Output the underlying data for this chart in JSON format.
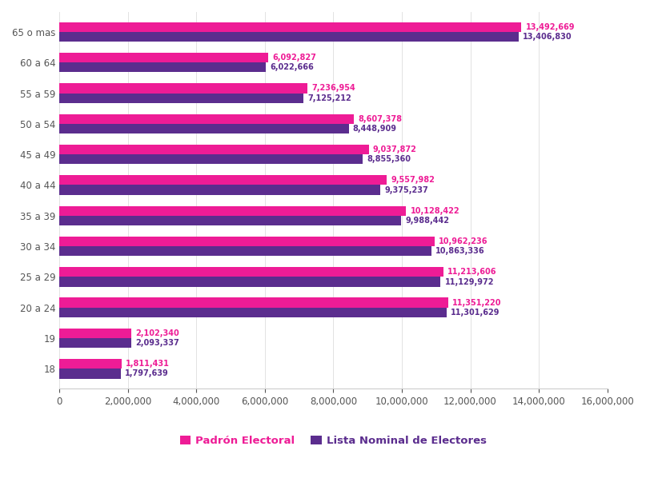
{
  "categories": [
    "18",
    "19",
    "20 a 24",
    "25 a 29",
    "30 a 34",
    "35 a 39",
    "40 a 44",
    "45 a 49",
    "50 a 54",
    "55 a 59",
    "60 a 64",
    "65 o mas"
  ],
  "padron": [
    1811431,
    2102340,
    11351220,
    11213606,
    10962236,
    10128422,
    9557982,
    9037872,
    8607378,
    7236954,
    6092827,
    13492669
  ],
  "lista": [
    1797639,
    2093337,
    11301629,
    11129972,
    10863336,
    9988442,
    9375237,
    8855360,
    8448909,
    7125212,
    6022666,
    13406830
  ],
  "padron_color": "#EE1C96",
  "lista_color": "#5B2D8E",
  "padron_label": "Padrón Electoral",
  "lista_label": "Lista Nominal de Electores",
  "xlim": [
    0,
    16000000
  ],
  "xticks": [
    0,
    2000000,
    4000000,
    6000000,
    8000000,
    10000000,
    12000000,
    14000000,
    16000000
  ],
  "background_color": "#FFFFFF",
  "bar_height": 0.32,
  "label_fontsize": 7.0,
  "axis_fontsize": 8.5,
  "legend_fontsize": 9.5,
  "ytick_color": "#555555",
  "xtick_color": "#555555"
}
